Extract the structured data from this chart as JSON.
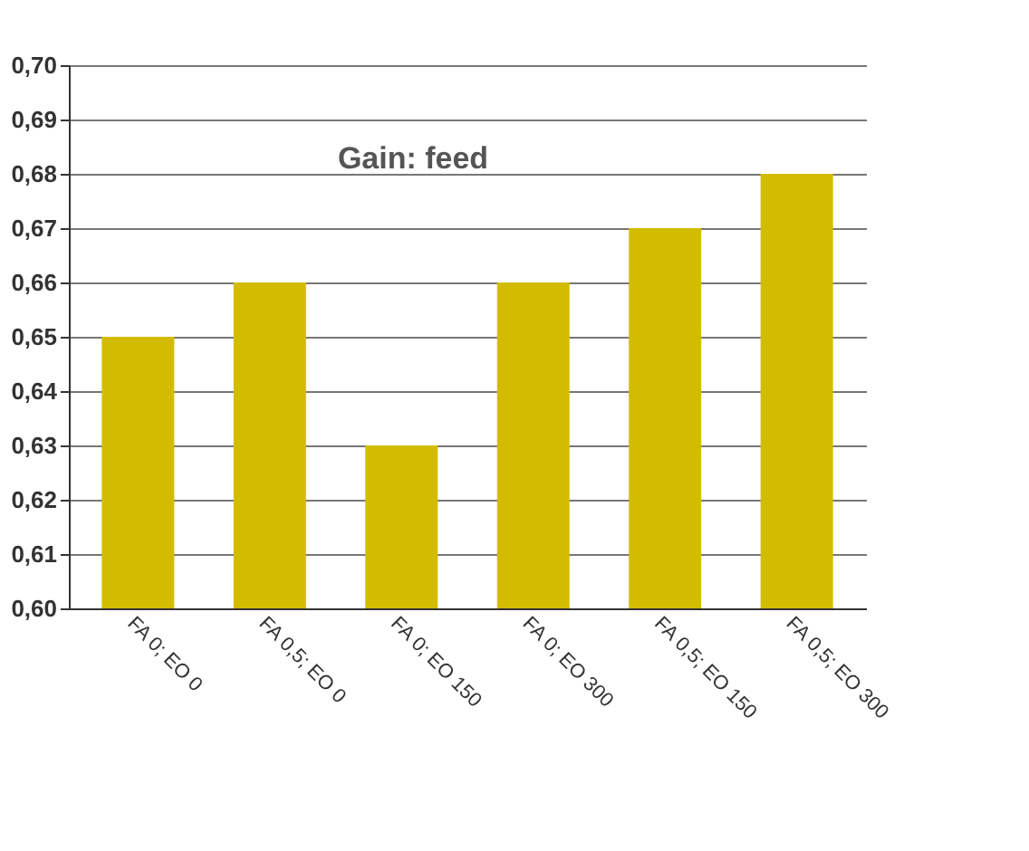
{
  "chart_data": {
    "type": "bar",
    "title": "Gain: feed",
    "categories": [
      "FA 0; EO 0",
      "FA 0,5; EO 0",
      "FA 0; EO 150",
      "FA 0; EO 300",
      "FA 0,5; EO 150",
      "FA 0,5; EO 300"
    ],
    "values": [
      0.65,
      0.66,
      0.63,
      0.66,
      0.67,
      0.68
    ],
    "color": "#d3bc00",
    "ylim": [
      0.6,
      0.7
    ],
    "yticks": [
      {
        "value": 0.6,
        "label": "0,60"
      },
      {
        "value": 0.61,
        "label": "0,61"
      },
      {
        "value": 0.62,
        "label": "0,62"
      },
      {
        "value": 0.63,
        "label": "0,63"
      },
      {
        "value": 0.64,
        "label": "0,64"
      },
      {
        "value": 0.65,
        "label": "0,65"
      },
      {
        "value": 0.66,
        "label": "0,66"
      },
      {
        "value": 0.67,
        "label": "0,67"
      },
      {
        "value": 0.68,
        "label": "0,68"
      },
      {
        "value": 0.69,
        "label": "0,69"
      },
      {
        "value": 0.7,
        "label": "0,70"
      }
    ],
    "grid": "y"
  }
}
